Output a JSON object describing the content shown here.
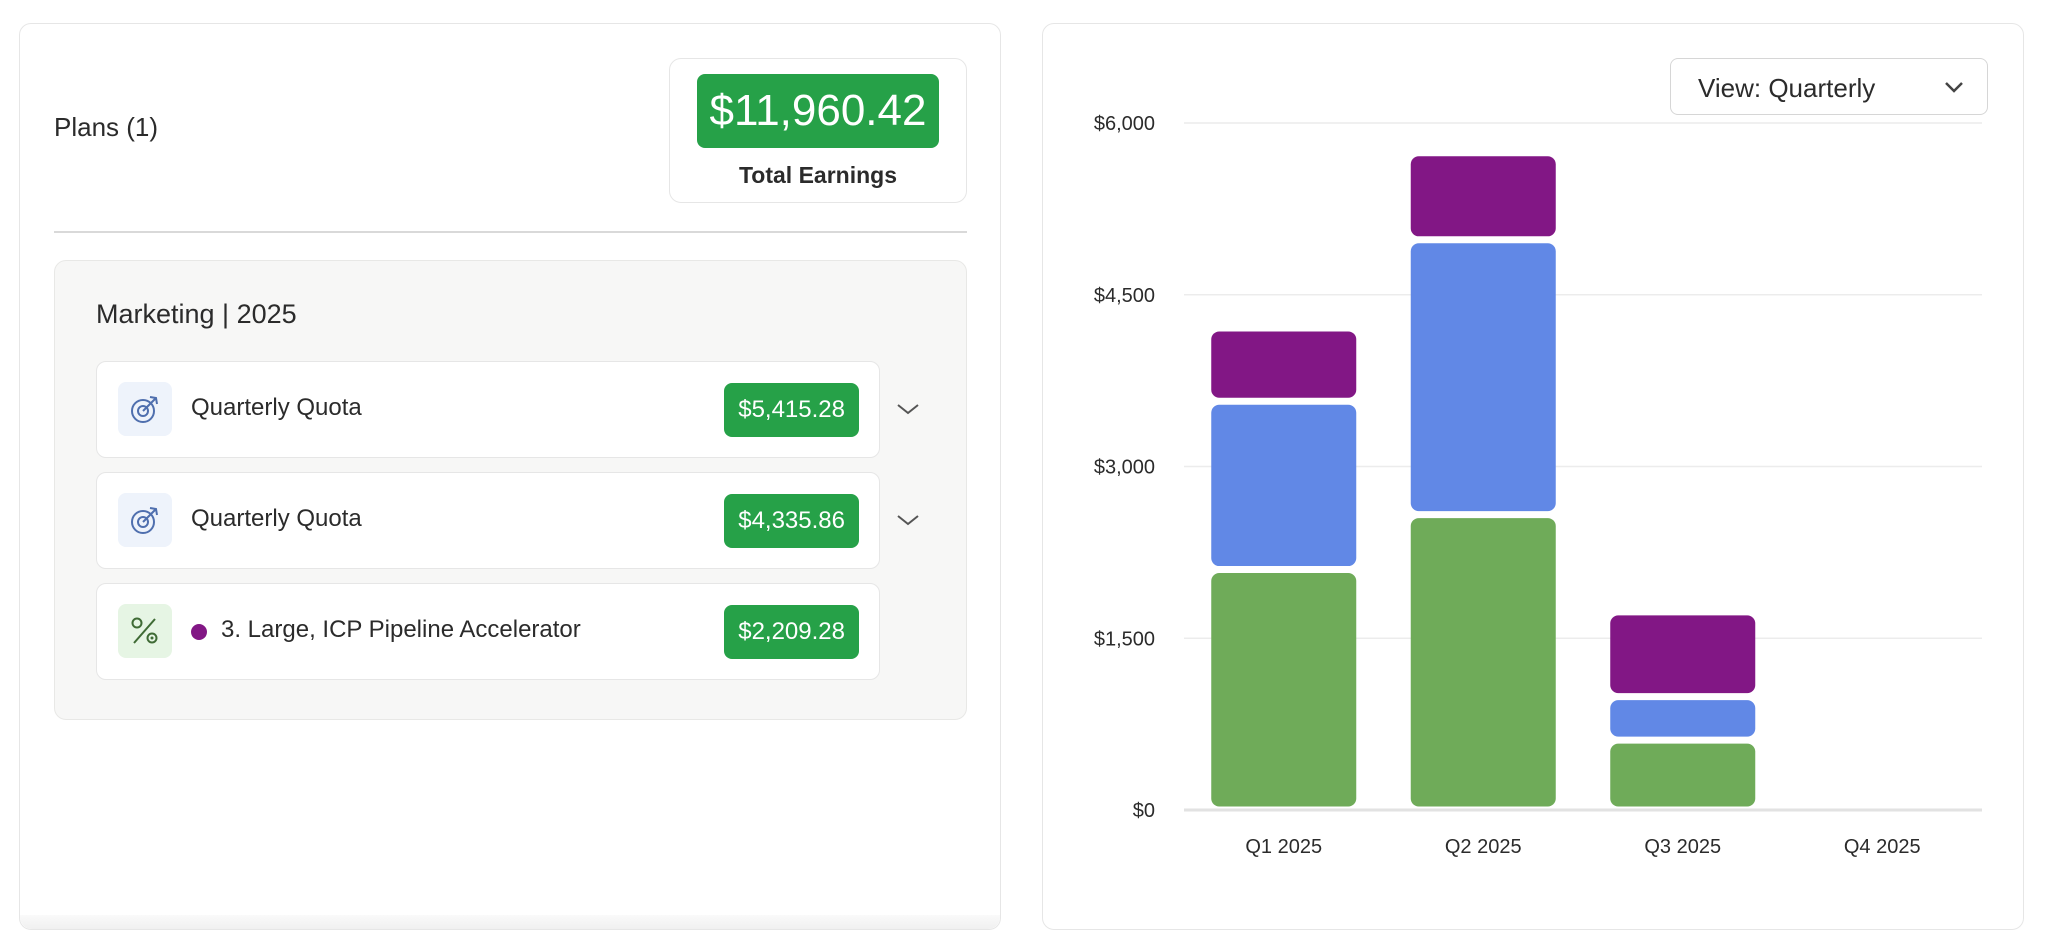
{
  "plans_header": {
    "title": "Plans (1)"
  },
  "earnings": {
    "amount": "$11,960.42",
    "label": "Total Earnings"
  },
  "group": {
    "title": "Marketing | 2025",
    "items": [
      {
        "label": "Quarterly Quota",
        "amount": "$5,415.28",
        "icon": "target-arrow-icon",
        "expandable": true
      },
      {
        "label": "Quarterly Quota",
        "amount": "$4,335.86",
        "icon": "target-arrow-icon",
        "expandable": true
      },
      {
        "label": "3. Large, ICP Pipeline Accelerator",
        "amount": "$2,209.28",
        "icon": "percent-icon",
        "dot_color": "#821785",
        "expandable": false
      }
    ]
  },
  "view_select": {
    "label": "View: Quarterly"
  },
  "colors": {
    "green": "#26a148",
    "series_green": "#6fab59",
    "series_blue": "#6188e6",
    "series_purple": "#821785"
  },
  "chart_data": {
    "type": "bar",
    "stacked": true,
    "categories": [
      "Q1 2025",
      "Q2 2025",
      "Q3 2025",
      "Q4 2025"
    ],
    "series": [
      {
        "color": "#6fab59",
        "values": [
          2100,
          2580,
          610,
          0
        ]
      },
      {
        "color": "#6188e6",
        "values": [
          1470,
          2400,
          380,
          0
        ]
      },
      {
        "color": "#821785",
        "values": [
          640,
          760,
          740,
          0
        ]
      }
    ],
    "y_ticks": [
      "$0",
      "$1,500",
      "$3,000",
      "$4,500",
      "$6,000"
    ],
    "y_tick_values": [
      0,
      1500,
      3000,
      4500,
      6000
    ],
    "ylim": [
      0,
      6000
    ],
    "grid": true
  }
}
